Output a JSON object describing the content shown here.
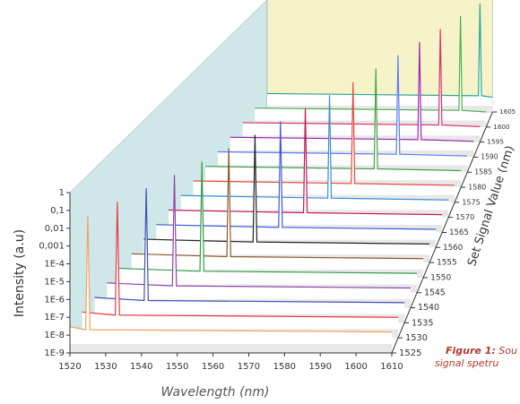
{
  "chart_data": {
    "type": "waterfall",
    "log": true,
    "ylabel": "Intensity (a.u)",
    "xlabel": "Wavelength (nm)",
    "zlabel": "Set Signal Value (nm)",
    "xlim": [
      1520,
      1610
    ],
    "xticks": [
      1520,
      1530,
      1540,
      1550,
      1560,
      1570,
      1580,
      1590,
      1600,
      1610
    ],
    "ylim": [
      1e-09,
      1
    ],
    "yticks": [
      1,
      {
        "value": 0.1,
        "label": "0,1"
      },
      {
        "value": 0.01,
        "label": "0,01"
      },
      {
        "value": 0.001,
        "label": "0,001"
      },
      {
        "value": 0.0001,
        "label": "1E-4"
      },
      {
        "value": 1e-05,
        "label": "1E-5"
      },
      {
        "value": 1e-06,
        "label": "1E-6"
      },
      {
        "value": 1e-07,
        "label": "1E-7"
      },
      {
        "value": 1e-08,
        "label": "1E-8"
      },
      {
        "value": 1e-09,
        "label": "1E-9"
      }
    ],
    "zticks": [
      1525,
      1530,
      1535,
      1540,
      1545,
      1550,
      1555,
      1560,
      1565,
      1570,
      1575,
      1580,
      1585,
      1590,
      1595,
      1600,
      1605
    ],
    "series": [
      {
        "color": "#f4a261",
        "x": [
          1520,
          1524.4,
          1525,
          1525.6,
          1610
        ],
        "values": [
          3e-08,
          2e-08,
          0.05,
          2e-08,
          1.5e-08
        ]
      },
      {
        "color": "#e63946",
        "x": [
          1520,
          1529.4,
          1530,
          1530.6,
          1610
        ],
        "values": [
          3e-08,
          2e-08,
          0.06,
          2e-08,
          1.5e-08
        ]
      },
      {
        "color": "#3f51b5",
        "x": [
          1520,
          1534.4,
          1535,
          1535.6,
          1610
        ],
        "values": [
          3e-08,
          2e-08,
          0.07,
          2e-08,
          1.5e-08
        ]
      },
      {
        "color": "#8e44ad",
        "x": [
          1520,
          1539.4,
          1540,
          1540.6,
          1610
        ],
        "values": [
          3e-08,
          2e-08,
          0.08,
          2e-08,
          1.5e-08
        ]
      },
      {
        "color": "#2e9e44",
        "x": [
          1520,
          1544.4,
          1545,
          1545.6,
          1610
        ],
        "values": [
          3e-08,
          2e-08,
          0.09,
          2e-08,
          1.5e-08
        ]
      },
      {
        "color": "#8b5a2b",
        "x": [
          1520,
          1549.4,
          1550,
          1550.6,
          1610
        ],
        "values": [
          3e-08,
          2e-08,
          0.1,
          2e-08,
          1.5e-08
        ]
      },
      {
        "color": "#222222",
        "x": [
          1520,
          1554.4,
          1555,
          1555.6,
          1610
        ],
        "values": [
          3e-08,
          2e-08,
          0.12,
          2e-08,
          1.5e-08
        ]
      },
      {
        "color": "#3b5bdb",
        "x": [
          1520,
          1559.4,
          1560,
          1560.6,
          1610
        ],
        "values": [
          3e-08,
          2e-08,
          0.14,
          2e-08,
          1.5e-08
        ]
      },
      {
        "color": "#c2185b",
        "x": [
          1520,
          1564.4,
          1565,
          1565.6,
          1610
        ],
        "values": [
          3e-08,
          2e-08,
          0.16,
          2e-08,
          1.5e-08
        ]
      },
      {
        "color": "#3a8fd9",
        "x": [
          1520,
          1569.4,
          1570,
          1570.6,
          1610
        ],
        "values": [
          3e-08,
          2e-08,
          0.18,
          2e-08,
          1.5e-08
        ]
      },
      {
        "color": "#e74c3c",
        "x": [
          1520,
          1574.4,
          1575,
          1575.6,
          1610
        ],
        "values": [
          3e-08,
          2e-08,
          0.2,
          2e-08,
          1.5e-08
        ]
      },
      {
        "color": "#43a047",
        "x": [
          1520,
          1579.4,
          1580,
          1580.6,
          1610
        ],
        "values": [
          3e-08,
          2e-08,
          0.25,
          2e-08,
          1.5e-08
        ]
      },
      {
        "color": "#5c7cfa",
        "x": [
          1520,
          1584.4,
          1585,
          1585.6,
          1610
        ],
        "values": [
          3e-08,
          2e-08,
          0.3,
          2e-08,
          1.5e-08
        ]
      },
      {
        "color": "#9c27b0",
        "x": [
          1520,
          1589.4,
          1590,
          1590.6,
          1610
        ],
        "values": [
          3e-08,
          2e-08,
          0.35,
          2e-08,
          1.5e-08
        ]
      },
      {
        "color": "#d6336c",
        "x": [
          1520,
          1594.4,
          1595,
          1595.6,
          1610
        ],
        "values": [
          3e-08,
          2e-08,
          0.4,
          2e-08,
          1.5e-08
        ]
      },
      {
        "color": "#4caf50",
        "x": [
          1520,
          1599.4,
          1600,
          1600.6,
          1610
        ],
        "values": [
          3e-08,
          2e-08,
          0.45,
          2e-08,
          1.5e-08
        ]
      },
      {
        "color": "#26a69a",
        "x": [
          1520,
          1604.4,
          1605,
          1605.6,
          1610
        ],
        "values": [
          3e-08,
          2e-08,
          0.5,
          2e-08,
          1.5e-08
        ]
      }
    ]
  },
  "caption": {
    "label": "Figure 1:",
    "text": "Sou",
    "line2": "signal spetru"
  }
}
